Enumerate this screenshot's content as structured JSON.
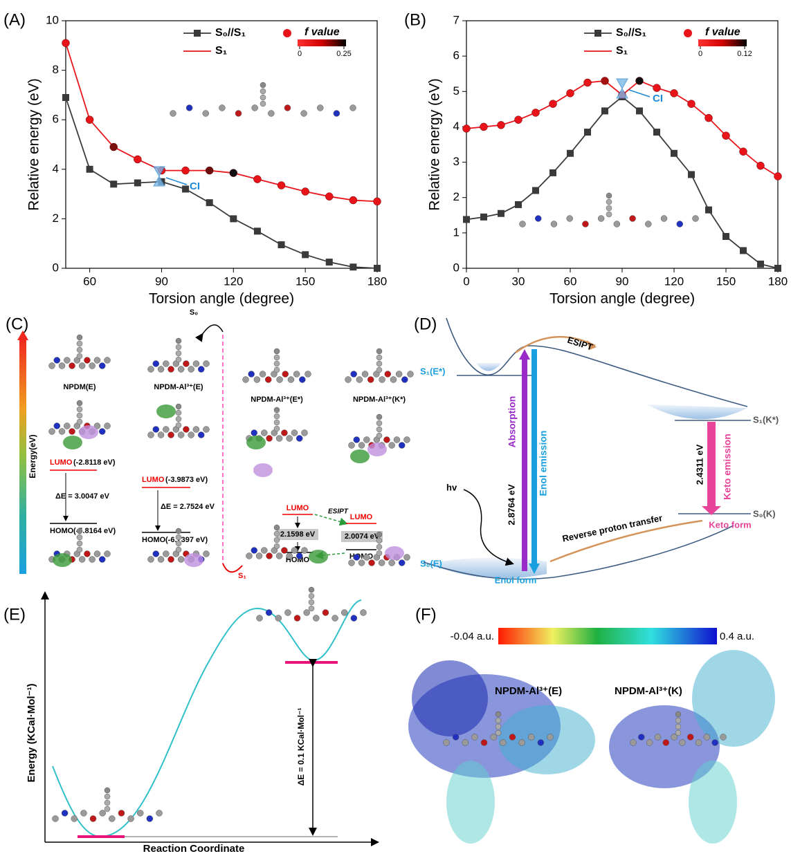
{
  "chart_data": [
    {
      "type": "line",
      "panel_label": "(A)",
      "xlabel": "Torsion angle (degree)",
      "ylabel": "Relative energy (eV)",
      "xlim": [
        50,
        180
      ],
      "ylim": [
        0,
        10
      ],
      "xticks": [
        60,
        90,
        120,
        150,
        180
      ],
      "yticks": [
        0,
        2,
        4,
        6,
        8,
        10
      ],
      "x": [
        50,
        60,
        70,
        80,
        90,
        100,
        110,
        120,
        130,
        140,
        150,
        160,
        170,
        180
      ],
      "series": [
        {
          "name": "S₀//S₁",
          "color": "#3a3a3a",
          "marker": "square",
          "values": [
            6.9,
            4.0,
            3.4,
            3.45,
            3.5,
            3.2,
            2.65,
            2.0,
            1.5,
            0.95,
            0.55,
            0.25,
            0.05,
            0.0
          ]
        },
        {
          "name": "S₁",
          "color": "#e8141a",
          "marker": "circle",
          "values": [
            9.1,
            6.0,
            4.9,
            4.4,
            3.95,
            3.95,
            3.95,
            3.85,
            3.6,
            3.35,
            3.1,
            2.9,
            2.75,
            2.7
          ],
          "marker_colors": [
            "#e8141a",
            "#e8141a",
            "#7a0f0f",
            "#e8141a",
            "#e8141a",
            "#e8141a",
            "#6a0c0c",
            "#111111",
            "#e8141a",
            "#e8141a",
            "#e8141a",
            "#e8141a",
            "#e8141a",
            "#e8141a"
          ]
        }
      ],
      "colorbar": {
        "label": "f value",
        "ticks": [
          0,
          0.25
        ],
        "colors": [
          "#ff3030",
          "#d00000",
          "#000000"
        ]
      },
      "annotation": "CI"
    },
    {
      "type": "line",
      "panel_label": "(B)",
      "xlabel": "Torsion angle (degree)",
      "ylabel": "Relative energy (eV)",
      "xlim": [
        0,
        180
      ],
      "ylim": [
        0,
        7
      ],
      "xticks": [
        0,
        30,
        60,
        90,
        120,
        150,
        180
      ],
      "yticks": [
        0,
        1,
        2,
        3,
        4,
        5,
        6,
        7
      ],
      "x": [
        0,
        10,
        20,
        30,
        40,
        50,
        60,
        70,
        80,
        90,
        100,
        110,
        120,
        130,
        140,
        150,
        160,
        170,
        180
      ],
      "series": [
        {
          "name": "S₀//S₁",
          "color": "#3a3a3a",
          "marker": "square",
          "values": [
            1.38,
            1.45,
            1.55,
            1.8,
            2.2,
            2.7,
            3.25,
            3.85,
            4.45,
            4.85,
            4.45,
            3.85,
            3.25,
            2.65,
            1.65,
            0.9,
            0.5,
            0.12,
            0.0
          ]
        },
        {
          "name": "S₁",
          "color": "#e8141a",
          "marker": "circle",
          "values": [
            3.95,
            4.0,
            4.05,
            4.2,
            4.4,
            4.65,
            4.95,
            5.25,
            5.3,
            4.9,
            5.3,
            5.1,
            4.95,
            4.65,
            4.25,
            3.75,
            3.3,
            2.9,
            2.6
          ],
          "marker_colors": [
            "#e8141a",
            "#e8141a",
            "#e8141a",
            "#e8141a",
            "#e8141a",
            "#e8141a",
            "#e8141a",
            "#e8141a",
            "#a51010",
            "#e8141a",
            "#111111",
            "#e8141a",
            "#e8141a",
            "#e8141a",
            "#e8141a",
            "#e8141a",
            "#e8141a",
            "#e8141a",
            "#e8141a"
          ]
        }
      ],
      "colorbar": {
        "label": "f value",
        "ticks": [
          0,
          0.12
        ],
        "colors": [
          "#ff3030",
          "#d00000",
          "#000000"
        ]
      },
      "annotation": "CI"
    }
  ],
  "panel_c": {
    "label": "(C)",
    "axis": "Energy(eV)",
    "s0": "S₀",
    "s1": "S₁",
    "names": [
      "NPDM(E)",
      "NPDM-Al³⁺(E)",
      "NPDM-Al³⁺(E*)",
      "NPDM-Al³⁺(K*)"
    ],
    "col1": {
      "lumo": "LUMO",
      "lumo_e": "(-2.8118 eV)",
      "gap": "ΔE = 3.0047 eV",
      "homo": "HOMO",
      "homo_e": "(-5.8164 eV)"
    },
    "col2": {
      "lumo": "LUMO",
      "lumo_e": "(-3.9873 eV)",
      "gap": "ΔE = 2.7524 eV",
      "homo": "HOMO",
      "homo_e": "(-6.7397 eV)"
    },
    "col3": {
      "lumo": "LUMO",
      "gap": "2.1598 eV",
      "homo": "HOMO"
    },
    "esipt": "ESIPT",
    "col4": {
      "lumo": "LUMO",
      "gap": "2.0074 eV",
      "homo": "HOMO"
    }
  },
  "panel_d": {
    "label": "(D)",
    "esipt": "ESIPT",
    "s1e": "S₁(E*)",
    "s1k": "S₁(K*)",
    "absorption": "Absorption",
    "enol_emission": "Enol emission",
    "gap_e": "2.8764 eV",
    "gap_k": "2.4311 eV",
    "keto_emission": "Keto emission",
    "hv": "hv",
    "reverse": "Reverse proton transfer",
    "s0k": "S₀(K)",
    "keto_form": "Keto form",
    "s0e": "S₀(E)",
    "enol_form": "Enol form"
  },
  "panel_e": {
    "label": "(E)",
    "ylabel": "Energy (KCal·Mol⁻¹)",
    "delta": "ΔE = 0.1 KCal·Mol⁻¹",
    "xlabel": "Reaction Coordinate"
  },
  "panel_f": {
    "label": "(F)",
    "min": "-0.04 a.u.",
    "max": "0.4 a.u.",
    "left": "NPDM-Al³⁺(E)",
    "right": "NPDM-Al³⁺(K)"
  }
}
